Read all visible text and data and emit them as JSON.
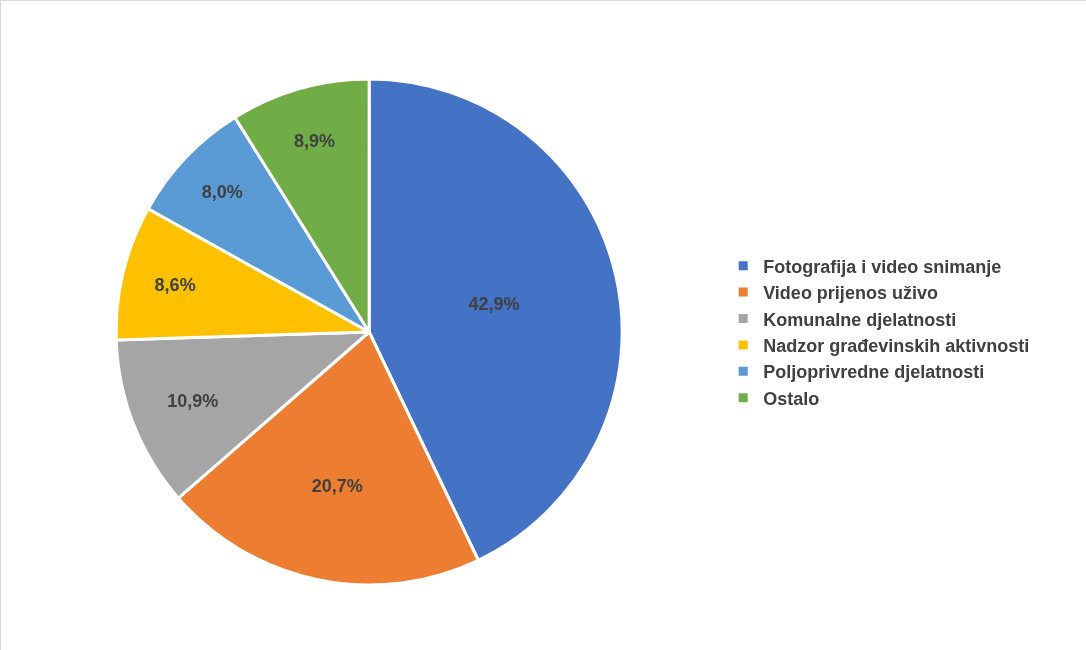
{
  "chart_data": {
    "type": "pie",
    "categories": [
      "Fotografija i video snimanje",
      "Video prijenos uživo",
      "Komunalne djelatnosti",
      "Nadzor građevinskih aktivnosti",
      "Poljoprivredne djelatnosti",
      "Ostalo"
    ],
    "values": [
      42.9,
      20.7,
      10.9,
      8.6,
      8.0,
      8.9
    ],
    "value_labels": [
      "42,9%",
      "20,7%",
      "10,9%",
      "8,6%",
      "8,0%",
      "8,9%"
    ],
    "colors": [
      "#4472c4",
      "#ed7d31",
      "#a5a5a5",
      "#ffc000",
      "#5b9bd5",
      "#70ad47"
    ],
    "legend": "right"
  }
}
